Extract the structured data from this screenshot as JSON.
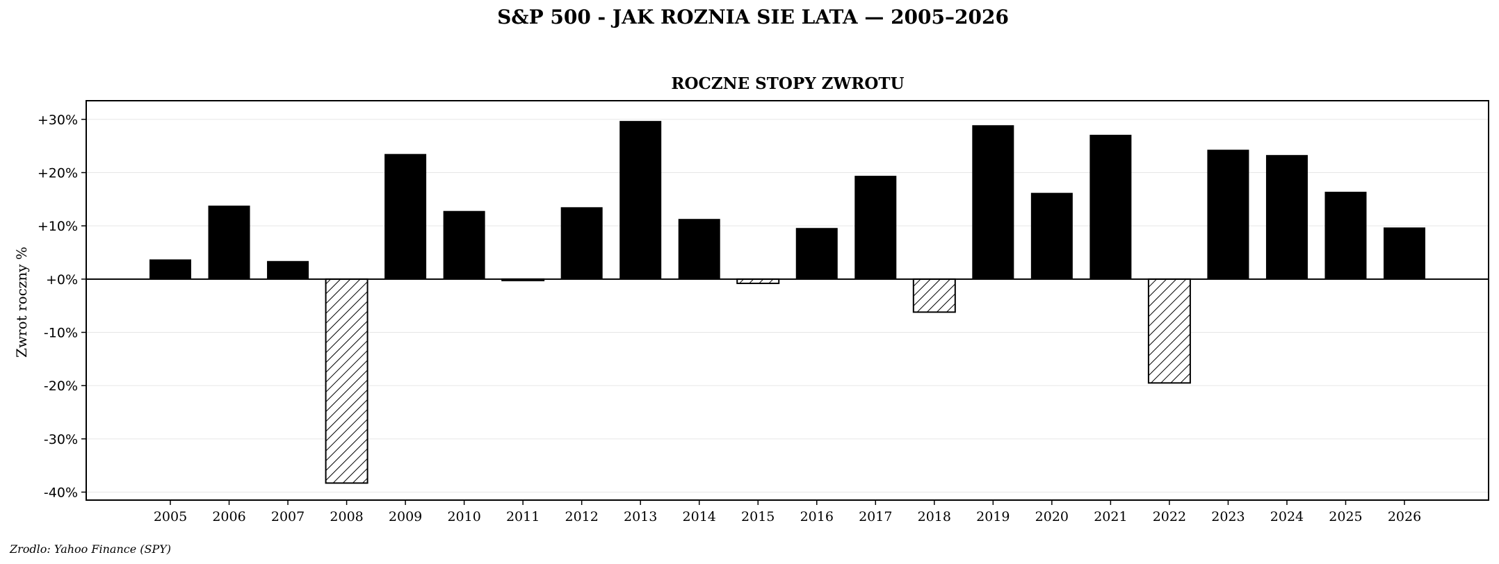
{
  "figure_title": "S&P 500 - JAK ROZNIA SIE LATA — 2005–2026",
  "source_note": "Zrodlo: Yahoo Finance (SPY)",
  "colors": {
    "positive": "#000000",
    "negative_fill": "#ffffff",
    "negative_hatch": "#000000",
    "grid": "#e6e6e6",
    "axis": "#000000"
  },
  "chart_data": {
    "type": "bar",
    "title": "ROCZNE STOPY ZWROTU",
    "xlabel": "",
    "ylabel": "Zwrot roczny %",
    "ylim": [
      -41.5,
      33.5
    ],
    "yticks": [
      30,
      20,
      10,
      0,
      -10,
      -20,
      -30,
      -40
    ],
    "ytick_labels": [
      "+30%",
      "+20%",
      "+10%",
      "+0%",
      "-10%",
      "-20%",
      "-30%",
      "-40%"
    ],
    "grid": true,
    "negative_style": "hatched",
    "categories": [
      "2005",
      "2006",
      "2007",
      "2008",
      "2009",
      "2010",
      "2011",
      "2012",
      "2013",
      "2014",
      "2015",
      "2016",
      "2017",
      "2018",
      "2019",
      "2020",
      "2021",
      "2022",
      "2023",
      "2024",
      "2025",
      "2026"
    ],
    "values": [
      3.7,
      13.8,
      3.4,
      -38.3,
      23.5,
      12.8,
      -0.2,
      13.5,
      29.7,
      11.3,
      -0.8,
      9.6,
      19.4,
      -6.2,
      28.9,
      16.2,
      27.1,
      -19.5,
      24.3,
      23.3,
      16.4,
      9.7
    ]
  }
}
